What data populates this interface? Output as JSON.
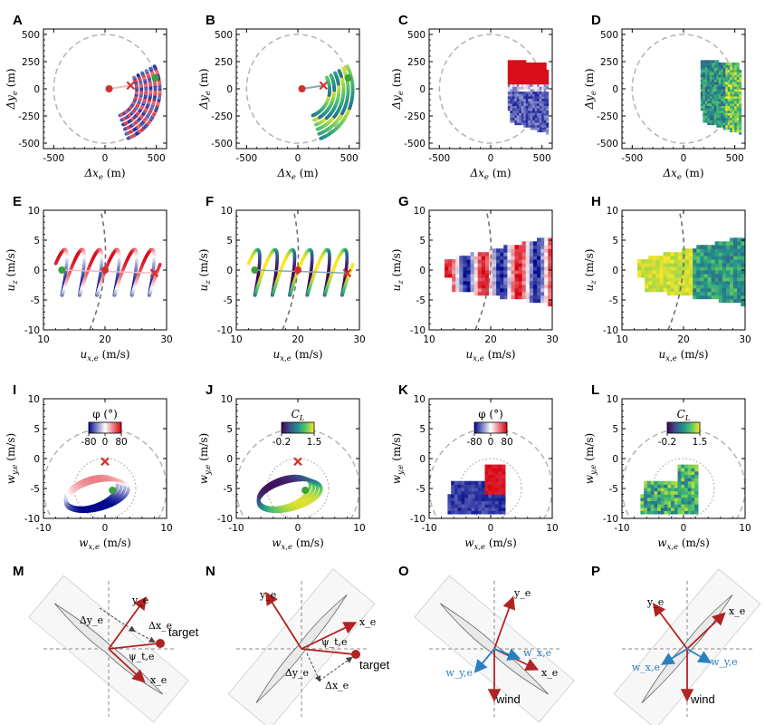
{
  "panels": {
    "A": "A",
    "B": "B",
    "C": "C",
    "D": "D",
    "E": "E",
    "F": "F",
    "G": "G",
    "H": "H",
    "I": "I",
    "J": "J",
    "K": "K",
    "L": "L",
    "M": "M",
    "N": "N",
    "O": "O",
    "P": "P"
  },
  "colors": {
    "phi_neg": "#000a8c",
    "phi_zero": "#ffffff",
    "phi_pos": "#d7000f",
    "cl_low": "#440154",
    "cl_mid": "#21918c",
    "cl_high": "#fde725",
    "ref_circle": "#b3b3b3",
    "arrow_red": "#b22222",
    "arrow_blue": "#2a7fc0",
    "marker_green": "#3aa03a",
    "marker_red": "#d32f2f"
  },
  "chart_data": [
    {
      "id": "A",
      "type": "scatter",
      "xlabel": "Δx_e (m)",
      "ylabel": "Δy_e (m)",
      "xlim": [
        -600,
        600
      ],
      "ylim": [
        -550,
        550
      ],
      "xticks": [
        -500,
        0,
        500
      ],
      "yticks": [
        -500,
        -250,
        0,
        250,
        500
      ],
      "colored_by": "phi",
      "reference": "dashed circle radius 500 m",
      "markers": {
        "start_dot": [
          40,
          0
        ],
        "cross": [
          250,
          30
        ],
        "end_dot": [
          490,
          100
        ]
      }
    },
    {
      "id": "B",
      "type": "scatter",
      "xlabel": "Δx_e (m)",
      "ylabel": "Δy_e (m)",
      "xlim": [
        -600,
        600
      ],
      "ylim": [
        -550,
        550
      ],
      "xticks": [
        -500,
        0,
        500
      ],
      "yticks": [
        -500,
        -250,
        0,
        250,
        500
      ],
      "colored_by": "C_L",
      "markers": {
        "start_dot": [
          40,
          0
        ],
        "cross": [
          250,
          30
        ],
        "end_dot": [
          490,
          100
        ]
      }
    },
    {
      "id": "C",
      "type": "heatmap",
      "xlabel": "Δx_e (m)",
      "ylabel": "Δy_e (m)",
      "xlim": [
        -600,
        600
      ],
      "ylim": [
        -550,
        550
      ],
      "xticks": [
        -500,
        0,
        500
      ],
      "yticks": [
        -500,
        -250,
        0,
        250,
        500
      ],
      "colored_by": "phi"
    },
    {
      "id": "D",
      "type": "heatmap",
      "xlabel": "Δx_e (m)",
      "ylabel": "Δy_e (m)",
      "xlim": [
        -600,
        600
      ],
      "ylim": [
        -550,
        550
      ],
      "xticks": [
        -500,
        0,
        500
      ],
      "yticks": [
        -500,
        -250,
        0,
        250,
        500
      ],
      "colored_by": "C_L"
    },
    {
      "id": "E",
      "type": "scatter",
      "xlabel": "u_x,e (m/s)",
      "ylabel": "u_z (m/s)",
      "xlim": [
        10,
        30
      ],
      "ylim": [
        -10,
        10
      ],
      "xticks": [
        10,
        20,
        30
      ],
      "yticks": [
        -10,
        -5,
        0,
        5,
        10
      ],
      "colored_by": "phi",
      "markers": {
        "green_dot": [
          13,
          0
        ],
        "red_dot": [
          20,
          0
        ],
        "cross": [
          28,
          -0.5
        ]
      }
    },
    {
      "id": "F",
      "type": "scatter",
      "xlabel": "u_x,e (m/s)",
      "ylabel": "u_z (m/s)",
      "xlim": [
        10,
        30
      ],
      "ylim": [
        -10,
        10
      ],
      "xticks": [
        10,
        20,
        30
      ],
      "yticks": [
        -10,
        -5,
        0,
        5,
        10
      ],
      "colored_by": "C_L",
      "markers": {
        "green_dot": [
          13,
          0
        ],
        "red_dot": [
          20,
          0
        ],
        "cross": [
          28,
          -0.5
        ]
      }
    },
    {
      "id": "G",
      "type": "heatmap",
      "xlabel": "u_x,e (m/s)",
      "ylabel": "u_z (m/s)",
      "xlim": [
        10,
        30
      ],
      "ylim": [
        -10,
        10
      ],
      "xticks": [
        10,
        20,
        30
      ],
      "yticks": [
        -10,
        -5,
        0,
        5,
        10
      ],
      "colored_by": "phi"
    },
    {
      "id": "H",
      "type": "heatmap",
      "xlabel": "u_x,e (m/s)",
      "ylabel": "u_z (m/s)",
      "xlim": [
        10,
        30
      ],
      "ylim": [
        -10,
        10
      ],
      "xticks": [
        10,
        20,
        30
      ],
      "yticks": [
        -10,
        -5,
        0,
        5,
        10
      ],
      "colored_by": "C_L"
    },
    {
      "id": "I",
      "type": "scatter",
      "xlabel": "w_x,e (m/s)",
      "ylabel": "w_y,e (m/s)",
      "xlim": [
        -10,
        10
      ],
      "ylim": [
        -10,
        10
      ],
      "xticks": [
        -10,
        0,
        10
      ],
      "yticks": [
        -10,
        -5,
        0,
        5,
        10
      ],
      "colorbar": {
        "label": "φ (°)",
        "ticks": [
          "-80",
          "0",
          "80"
        ],
        "range": [
          -80,
          80
        ]
      },
      "markers": {
        "cross": [
          0,
          -0.5
        ],
        "green_dot": [
          1,
          -5.3
        ]
      }
    },
    {
      "id": "J",
      "type": "scatter",
      "xlabel": "w_x,e (m/s)",
      "ylabel": "w_y,e (m/s)",
      "xlim": [
        -10,
        10
      ],
      "ylim": [
        -10,
        10
      ],
      "xticks": [
        -10,
        0,
        10
      ],
      "yticks": [
        -10,
        -5,
        0,
        5,
        10
      ],
      "colorbar": {
        "label": "C_L",
        "ticks": [
          "-0.2",
          "1.5"
        ],
        "range": [
          -0.2,
          1.5
        ]
      },
      "markers": {
        "cross": [
          0,
          -0.5
        ],
        "green_dot": [
          1,
          -5.3
        ]
      }
    },
    {
      "id": "K",
      "type": "heatmap",
      "xlabel": "w_x,e (m/s)",
      "ylabel": "w_y,e (m/s)",
      "xlim": [
        -10,
        10
      ],
      "ylim": [
        -10,
        10
      ],
      "xticks": [
        -10,
        0,
        10
      ],
      "yticks": [
        -10,
        -5,
        0,
        5,
        10
      ],
      "colorbar": {
        "label": "φ (°)",
        "ticks": [
          "-80",
          "0",
          "80"
        ],
        "range": [
          -80,
          80
        ]
      }
    },
    {
      "id": "L",
      "type": "heatmap",
      "xlabel": "w_x,e (m/s)",
      "ylabel": "w_y,e (m/s)",
      "xlim": [
        -10,
        10
      ],
      "ylim": [
        -10,
        10
      ],
      "xticks": [
        -10,
        0,
        10
      ],
      "yticks": [
        -10,
        -5,
        0,
        5,
        10
      ],
      "colorbar": {
        "label": "C_L",
        "ticks": [
          "-0.2",
          "1.5"
        ],
        "range": [
          -0.2,
          1.5
        ]
      }
    }
  ],
  "diagrams": {
    "M": {
      "labels": [
        "y_e",
        "Δy_e",
        "Δx_e",
        "target",
        "ψ_t,e",
        "x_e"
      ]
    },
    "N": {
      "labels": [
        "y_e",
        "x_e",
        "ψ_t,e",
        "target",
        "Δy_e",
        "Δx_e"
      ]
    },
    "O": {
      "labels": [
        "y_e",
        "w_x,e",
        "x_e",
        "w_y,e",
        "wind"
      ]
    },
    "P": {
      "labels": [
        "y_e",
        "x_e",
        "w_y,e",
        "w_x,e",
        "wind"
      ]
    }
  }
}
